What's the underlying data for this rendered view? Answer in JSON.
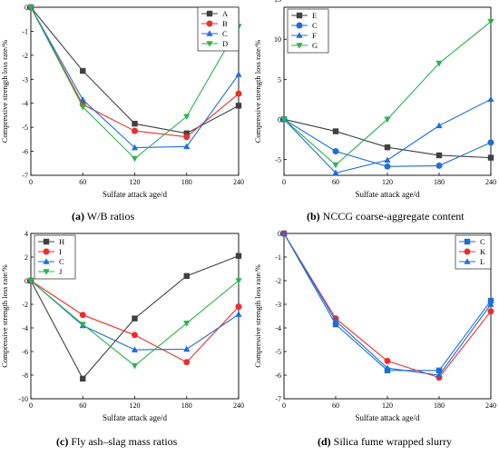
{
  "colors": {
    "A": "#404040",
    "B": "#e8302a",
    "C": "#1f6ed4",
    "D": "#2bb24c",
    "E": "#404040",
    "F": "#1f6ed4",
    "G": "#2bb24c",
    "H": "#404040",
    "I": "#e8302a",
    "J": "#2bb24c",
    "K": "#e8302a",
    "L": "#1f6ed4"
  },
  "captions": [
    {
      "letter": "(a)",
      "text": "W/B ratios"
    },
    {
      "letter": "(b)",
      "text": "NCCG coarse-aggregate content"
    },
    {
      "letter": "(c)",
      "text": "Fly ash–slag mass ratios"
    },
    {
      "letter": "(d)",
      "text": "Silica fume wrapped slurry"
    }
  ],
  "chart_data": [
    {
      "type": "line",
      "x": [
        0,
        60,
        120,
        180,
        240
      ],
      "xlim": [
        0,
        240
      ],
      "ylim": [
        -7,
        0
      ],
      "yticks": [
        0,
        -1,
        -2,
        -3,
        -4,
        -5,
        -6,
        -7
      ],
      "xlabel": "Sulfate attack age/d",
      "ylabel": "Compressive strength loss rate/%",
      "legend": "top-right",
      "series": [
        {
          "name": "A",
          "marker": "square",
          "values": [
            0,
            -2.65,
            -4.85,
            -5.25,
            -4.1
          ]
        },
        {
          "name": "B",
          "marker": "circle",
          "values": [
            0,
            -4.05,
            -5.15,
            -5.4,
            -3.6
          ]
        },
        {
          "name": "C",
          "marker": "triangle-up",
          "values": [
            0,
            -3.85,
            -5.85,
            -5.8,
            -2.8
          ]
        },
        {
          "name": "D",
          "marker": "triangle-down",
          "values": [
            0,
            -4.15,
            -6.3,
            -4.55,
            -0.8
          ]
        }
      ]
    },
    {
      "type": "line",
      "x": [
        0,
        60,
        120,
        180,
        240
      ],
      "xlim": [
        0,
        240
      ],
      "ylim": [
        -7,
        14
      ],
      "yticks": [
        15,
        10,
        5,
        0,
        -5
      ],
      "xlabel": "Sulfate attack age/d",
      "ylabel": "Compressive strength loss rate/%",
      "legend": "top-left",
      "series": [
        {
          "name": "E",
          "marker": "square",
          "values": [
            0,
            -1.5,
            -3.5,
            -4.5,
            -4.8
          ]
        },
        {
          "name": "C",
          "marker": "circle",
          "values": [
            0,
            -4.0,
            -5.9,
            -5.8,
            -2.9
          ]
        },
        {
          "name": "F",
          "marker": "triangle-up",
          "values": [
            0,
            -6.7,
            -5.1,
            -0.8,
            2.5
          ]
        },
        {
          "name": "G",
          "marker": "triangle-down",
          "values": [
            0,
            -5.7,
            0.0,
            7.0,
            12.2
          ]
        }
      ]
    },
    {
      "type": "line",
      "x": [
        0,
        60,
        120,
        180,
        240
      ],
      "xlim": [
        0,
        240
      ],
      "ylim": [
        -10,
        4
      ],
      "yticks": [
        4,
        2,
        0,
        -2,
        -4,
        -6,
        -8,
        -10
      ],
      "xlabel": "Sulfate attack age/d",
      "ylabel": "Compressive strength loss rate/%",
      "legend": "top-left",
      "series": [
        {
          "name": "H",
          "marker": "square",
          "values": [
            0,
            -8.3,
            -3.2,
            0.4,
            2.1
          ]
        },
        {
          "name": "I",
          "marker": "circle",
          "values": [
            0,
            -2.9,
            -4.6,
            -6.9,
            -2.2
          ]
        },
        {
          "name": "C",
          "marker": "triangle-up",
          "values": [
            0,
            -3.8,
            -5.85,
            -5.8,
            -2.85
          ]
        },
        {
          "name": "J",
          "marker": "triangle-down",
          "values": [
            0,
            -3.7,
            -7.2,
            -3.6,
            0.0
          ]
        }
      ]
    },
    {
      "type": "line",
      "x": [
        0,
        60,
        120,
        180,
        240
      ],
      "xlim": [
        0,
        240
      ],
      "ylim": [
        -7,
        0
      ],
      "yticks": [
        0,
        -1,
        -2,
        -3,
        -4,
        -5,
        -6,
        -7
      ],
      "xlabel": "Sulfate attack age/d",
      "ylabel": "Compressive strength loss rate/%",
      "legend": "top-right",
      "series": [
        {
          "name": "C",
          "marker": "square",
          "values": [
            0,
            -3.85,
            -5.8,
            -5.8,
            -2.85
          ]
        },
        {
          "name": "K",
          "marker": "circle",
          "values": [
            0,
            -3.6,
            -5.4,
            -6.1,
            -3.3
          ]
        },
        {
          "name": "L",
          "marker": "triangle-up",
          "values": [
            0,
            -3.7,
            -5.7,
            -6.0,
            -3.0
          ]
        }
      ]
    }
  ]
}
